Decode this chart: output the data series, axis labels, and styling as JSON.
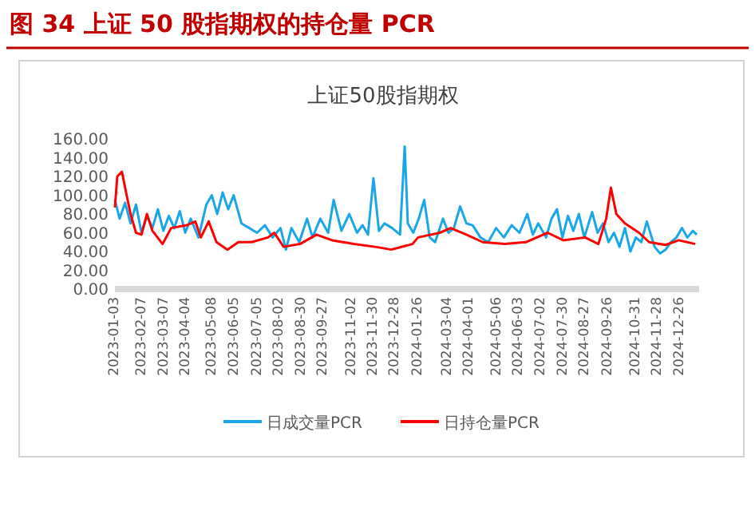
{
  "chart_data": {
    "type": "line",
    "title": "图 34 上证 50 股指期权的持仓量 PCR",
    "subtitle": "上证50股指期权",
    "xlim": [
      "2023-01-03",
      "2025-01-20"
    ],
    "xticks": [
      "2023-01-03",
      "2023-02-07",
      "2023-03-07",
      "2023-04-04",
      "2023-05-08",
      "2023-06-05",
      "2023-07-05",
      "2023-08-02",
      "2023-08-30",
      "2023-09-27",
      "2023-11-02",
      "2023-11-30",
      "2023-12-28",
      "2024-01-26",
      "2024-03-04",
      "2024-04-01",
      "2024-05-06",
      "2024-06-03",
      "2024-07-02",
      "2024-07-30",
      "2024-08-27",
      "2024-09-26",
      "2024-10-31",
      "2024-11-28",
      "2024-12-26"
    ],
    "ylim": [
      0,
      160
    ],
    "yticks": [
      {
        "value": 0,
        "label": "0.00"
      },
      {
        "value": 20,
        "label": "20.00"
      },
      {
        "value": 40,
        "label": "40.00"
      },
      {
        "value": 60,
        "label": "60.00"
      },
      {
        "value": 80,
        "label": "80.00"
      },
      {
        "value": 100,
        "label": "100.00"
      },
      {
        "value": 120,
        "label": "120.00"
      },
      {
        "value": 140,
        "label": "140.00"
      },
      {
        "value": 160,
        "label": "160.00"
      }
    ],
    "legend": "bottom",
    "grid": false,
    "series": [
      {
        "name": "日成交量PCR",
        "color": "#1aa7e8",
        "x": [
          "2023-01-03",
          "2023-01-09",
          "2023-01-16",
          "2023-01-23",
          "2023-01-30",
          "2023-02-06",
          "2023-02-13",
          "2023-02-20",
          "2023-02-27",
          "2023-03-06",
          "2023-03-13",
          "2023-03-20",
          "2023-03-27",
          "2023-04-03",
          "2023-04-10",
          "2023-04-20",
          "2023-04-30",
          "2023-05-07",
          "2023-05-14",
          "2023-05-21",
          "2023-05-28",
          "2023-06-04",
          "2023-06-14",
          "2023-06-24",
          "2023-07-04",
          "2023-07-14",
          "2023-07-24",
          "2023-08-03",
          "2023-08-10",
          "2023-08-17",
          "2023-08-27",
          "2023-09-06",
          "2023-09-13",
          "2023-09-23",
          "2023-10-03",
          "2023-10-10",
          "2023-10-20",
          "2023-10-30",
          "2023-11-09",
          "2023-11-16",
          "2023-11-23",
          "2023-11-30",
          "2023-12-07",
          "2023-12-14",
          "2023-12-24",
          "2024-01-03",
          "2024-01-09",
          "2024-01-13",
          "2024-01-20",
          "2024-01-27",
          "2024-02-03",
          "2024-02-10",
          "2024-02-17",
          "2024-02-27",
          "2024-03-05",
          "2024-03-12",
          "2024-03-20",
          "2024-03-28",
          "2024-04-05",
          "2024-04-15",
          "2024-04-25",
          "2024-05-05",
          "2024-05-15",
          "2024-05-25",
          "2024-06-04",
          "2024-06-14",
          "2024-06-21",
          "2024-06-28",
          "2024-07-08",
          "2024-07-15",
          "2024-07-22",
          "2024-07-29",
          "2024-08-05",
          "2024-08-12",
          "2024-08-19",
          "2024-08-26",
          "2024-09-05",
          "2024-09-12",
          "2024-09-19",
          "2024-09-26",
          "2024-10-03",
          "2024-10-10",
          "2024-10-17",
          "2024-10-24",
          "2024-10-31",
          "2024-11-07",
          "2024-11-14",
          "2024-11-24",
          "2024-12-01",
          "2024-12-08",
          "2024-12-15",
          "2024-12-22",
          "2024-12-29",
          "2025-01-05",
          "2025-01-12",
          "2025-01-17"
        ],
        "values": [
          95,
          75,
          92,
          70,
          90,
          60,
          78,
          65,
          85,
          62,
          78,
          65,
          83,
          60,
          75,
          55,
          90,
          100,
          80,
          103,
          85,
          100,
          70,
          65,
          60,
          68,
          55,
          65,
          42,
          65,
          50,
          75,
          55,
          75,
          60,
          95,
          62,
          80,
          60,
          68,
          58,
          118,
          62,
          70,
          65,
          58,
          152,
          70,
          60,
          75,
          95,
          55,
          50,
          75,
          60,
          65,
          88,
          70,
          68,
          55,
          50,
          65,
          55,
          68,
          60,
          80,
          58,
          70,
          55,
          75,
          85,
          55,
          78,
          62,
          80,
          55,
          82,
          60,
          70,
          50,
          60,
          45,
          65,
          40,
          55,
          50,
          72,
          45,
          38,
          42,
          50,
          55,
          65,
          55,
          62,
          58
        ]
      },
      {
        "name": "日持仓量PCR",
        "color": "#ff0000",
        "x": [
          "2023-01-03",
          "2023-01-06",
          "2023-01-12",
          "2023-01-18",
          "2023-01-23",
          "2023-01-30",
          "2023-02-06",
          "2023-02-13",
          "2023-02-20",
          "2023-03-05",
          "2023-03-16",
          "2023-04-05",
          "2023-04-16",
          "2023-04-23",
          "2023-05-03",
          "2023-05-13",
          "2023-05-27",
          "2023-06-10",
          "2023-06-27",
          "2023-07-18",
          "2023-07-26",
          "2023-08-07",
          "2023-08-28",
          "2023-09-18",
          "2023-10-08",
          "2023-11-05",
          "2023-12-02",
          "2023-12-23",
          "2024-01-19",
          "2024-01-26",
          "2024-02-23",
          "2024-03-08",
          "2024-03-28",
          "2024-04-18",
          "2024-05-16",
          "2024-06-12",
          "2024-07-10",
          "2024-07-30",
          "2024-08-27",
          "2024-09-13",
          "2024-09-23",
          "2024-09-29",
          "2024-10-06",
          "2024-10-17",
          "2024-11-04",
          "2024-11-17",
          "2024-12-08",
          "2024-12-25",
          "2025-01-15"
        ],
        "values": [
          87,
          120,
          125,
          100,
          80,
          60,
          58,
          80,
          62,
          48,
          65,
          68,
          72,
          55,
          72,
          50,
          42,
          50,
          50,
          55,
          60,
          45,
          48,
          58,
          52,
          48,
          45,
          42,
          48,
          55,
          60,
          65,
          58,
          50,
          48,
          50,
          60,
          52,
          55,
          48,
          75,
          108,
          80,
          70,
          60,
          50,
          47,
          52,
          48
        ]
      }
    ]
  }
}
